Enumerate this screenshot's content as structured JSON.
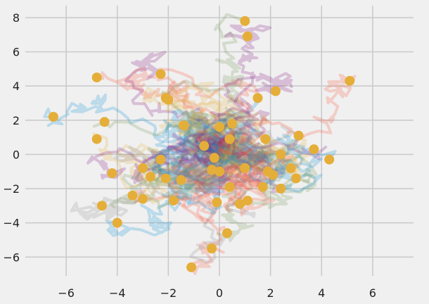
{
  "chart_data": {
    "type": "scatter",
    "title": "",
    "xlabel": "",
    "ylabel": "",
    "xlim": [
      -7.6,
      7.6
    ],
    "ylim": [
      -7.1,
      8.7
    ],
    "grid": true,
    "x_ticks": [
      -6,
      -4,
      -2,
      0,
      2,
      4,
      6
    ],
    "x_tick_labels": [
      "−6",
      "−4",
      "−2",
      "0",
      "2",
      "4",
      "6"
    ],
    "y_ticks": [
      -6,
      -4,
      -2,
      0,
      2,
      4,
      6,
      8
    ],
    "y_tick_labels": [
      "−6",
      "−4",
      "−2",
      "0",
      "2",
      "4",
      "6",
      "8"
    ],
    "style": {
      "background": "#f0f0f0",
      "grid_color": "#cbcbcb",
      "point_color": "#e5ae38",
      "trail_colors": [
        "#008fd5",
        "#fc4f30",
        "#e5ae38",
        "#6d904f",
        "#8b8b8b",
        "#810f7c"
      ],
      "trail_opacity": 0.22
    },
    "series": [
      {
        "points": [
          [
            -6.5,
            2.2
          ],
          [
            -4.8,
            4.5
          ],
          [
            -4.8,
            0.9
          ],
          [
            -4.5,
            1.9
          ],
          [
            -4.6,
            -3.0
          ],
          [
            -4.2,
            -1.1
          ],
          [
            -4.0,
            -4.0
          ],
          [
            -3.4,
            -2.4
          ],
          [
            -3.0,
            -0.8
          ],
          [
            -3.0,
            -2.6
          ],
          [
            -2.7,
            -1.3
          ],
          [
            -2.3,
            4.7
          ],
          [
            -2.3,
            -0.3
          ],
          [
            -2.1,
            3.3
          ],
          [
            -2.0,
            3.2
          ],
          [
            -2.1,
            -1.4
          ],
          [
            -1.8,
            -2.7
          ],
          [
            -1.5,
            -1.5
          ],
          [
            -1.4,
            1.7
          ],
          [
            -1.1,
            -6.6
          ],
          [
            -0.6,
            0.5
          ],
          [
            -0.3,
            -0.9
          ],
          [
            -0.3,
            -5.5
          ],
          [
            -0.2,
            -0.2
          ],
          [
            -0.1,
            -2.8
          ],
          [
            0.0,
            -1.0
          ],
          [
            0.0,
            1.6
          ],
          [
            0.3,
            -4.6
          ],
          [
            0.4,
            -1.9
          ],
          [
            0.4,
            0.9
          ],
          [
            0.5,
            1.8
          ],
          [
            0.8,
            -2.9
          ],
          [
            1.0,
            -0.8
          ],
          [
            1.0,
            7.8
          ],
          [
            1.1,
            -2.7
          ],
          [
            1.1,
            6.9
          ],
          [
            1.5,
            3.3
          ],
          [
            1.7,
            -1.9
          ],
          [
            1.8,
            0.9
          ],
          [
            1.9,
            -1.0
          ],
          [
            2.1,
            -1.2
          ],
          [
            2.2,
            3.7
          ],
          [
            2.4,
            -2.0
          ],
          [
            2.4,
            0.0
          ],
          [
            2.8,
            -0.8
          ],
          [
            3.0,
            -1.4
          ],
          [
            3.1,
            1.1
          ],
          [
            3.7,
            0.3
          ],
          [
            4.3,
            -0.3
          ],
          [
            5.1,
            4.3
          ]
        ]
      }
    ]
  }
}
